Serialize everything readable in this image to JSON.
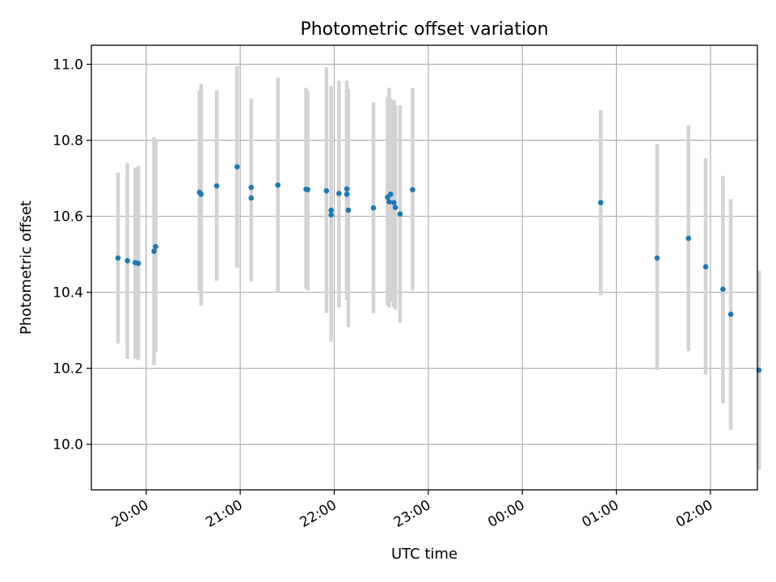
{
  "chart_data": {
    "type": "scatter",
    "title": "Photometric offset variation",
    "xlabel": "UTC time",
    "ylabel": "Photometric offset",
    "x_axis_type": "time",
    "xlim": [
      "19:25",
      "02:30"
    ],
    "ylim": [
      9.88,
      11.05
    ],
    "x_ticks": [
      "20:00",
      "21:00",
      "22:00",
      "23:00",
      "00:00",
      "01:00",
      "02:00"
    ],
    "y_ticks": [
      "10.0",
      "10.2",
      "10.4",
      "10.6",
      "10.8",
      "11.0"
    ],
    "grid": true,
    "marker_color": "#1f77b4",
    "errorbar_color": "#d3d3d3",
    "points": [
      {
        "t": "19:42",
        "y": 10.49,
        "lo": 10.265,
        "hi": 10.715
      },
      {
        "t": "19:48",
        "y": 10.483,
        "lo": 10.225,
        "hi": 10.74
      },
      {
        "t": "19:53",
        "y": 10.478,
        "lo": 10.225,
        "hi": 10.728
      },
      {
        "t": "19:55",
        "y": 10.476,
        "lo": 10.222,
        "hi": 10.732
      },
      {
        "t": "20:05",
        "y": 10.508,
        "lo": 10.208,
        "hi": 10.808
      },
      {
        "t": "20:06",
        "y": 10.52,
        "lo": 10.243,
        "hi": 10.8
      },
      {
        "t": "20:34",
        "y": 10.663,
        "lo": 10.405,
        "hi": 10.93
      },
      {
        "t": "20:35",
        "y": 10.658,
        "lo": 10.365,
        "hi": 10.948
      },
      {
        "t": "20:45",
        "y": 10.68,
        "lo": 10.43,
        "hi": 10.932
      },
      {
        "t": "20:58",
        "y": 10.73,
        "lo": 10.465,
        "hi": 10.995
      },
      {
        "t": "21:07",
        "y": 10.648,
        "lo": 10.428,
        "hi": 10.91
      },
      {
        "t": "21:07",
        "y": 10.676,
        "lo": 10.435,
        "hi": 10.85
      },
      {
        "t": "21:24",
        "y": 10.682,
        "lo": 10.4,
        "hi": 10.965
      },
      {
        "t": "21:42",
        "y": 10.671,
        "lo": 10.41,
        "hi": 10.938
      },
      {
        "t": "21:43",
        "y": 10.67,
        "lo": 10.405,
        "hi": 10.93
      },
      {
        "t": "21:55",
        "y": 10.667,
        "lo": 10.345,
        "hi": 10.992
      },
      {
        "t": "21:58",
        "y": 10.616,
        "lo": 10.27,
        "hi": 10.943
      },
      {
        "t": "21:58",
        "y": 10.604,
        "lo": 10.282,
        "hi": 10.935
      },
      {
        "t": "22:03",
        "y": 10.66,
        "lo": 10.36,
        "hi": 10.957
      },
      {
        "t": "22:08",
        "y": 10.672,
        "lo": 10.38,
        "hi": 10.957
      },
      {
        "t": "22:08",
        "y": 10.658,
        "lo": 10.39,
        "hi": 10.945
      },
      {
        "t": "22:09",
        "y": 10.616,
        "lo": 10.308,
        "hi": 10.935
      },
      {
        "t": "22:25",
        "y": 10.622,
        "lo": 10.345,
        "hi": 10.9
      },
      {
        "t": "22:34",
        "y": 10.65,
        "lo": 10.365,
        "hi": 10.915
      },
      {
        "t": "22:35",
        "y": 10.638,
        "lo": 10.36,
        "hi": 10.938
      },
      {
        "t": "22:36",
        "y": 10.658,
        "lo": 10.375,
        "hi": 10.91
      },
      {
        "t": "22:38",
        "y": 10.636,
        "lo": 10.36,
        "hi": 10.905
      },
      {
        "t": "22:39",
        "y": 10.623,
        "lo": 10.355,
        "hi": 10.892
      },
      {
        "t": "22:42",
        "y": 10.606,
        "lo": 10.32,
        "hi": 10.892
      },
      {
        "t": "22:50",
        "y": 10.67,
        "lo": 10.405,
        "hi": 10.937
      },
      {
        "t": "00:50",
        "y": 10.636,
        "lo": 10.392,
        "hi": 10.88
      },
      {
        "t": "01:26",
        "y": 10.49,
        "lo": 10.195,
        "hi": 10.79
      },
      {
        "t": "01:46",
        "y": 10.542,
        "lo": 10.245,
        "hi": 10.84
      },
      {
        "t": "01:57",
        "y": 10.467,
        "lo": 10.183,
        "hi": 10.753
      },
      {
        "t": "02:08",
        "y": 10.408,
        "lo": 10.108,
        "hi": 10.706
      },
      {
        "t": "02:13",
        "y": 10.342,
        "lo": 10.038,
        "hi": 10.645
      },
      {
        "t": "02:31",
        "y": 10.195,
        "lo": 9.933,
        "hi": 10.457
      }
    ]
  }
}
